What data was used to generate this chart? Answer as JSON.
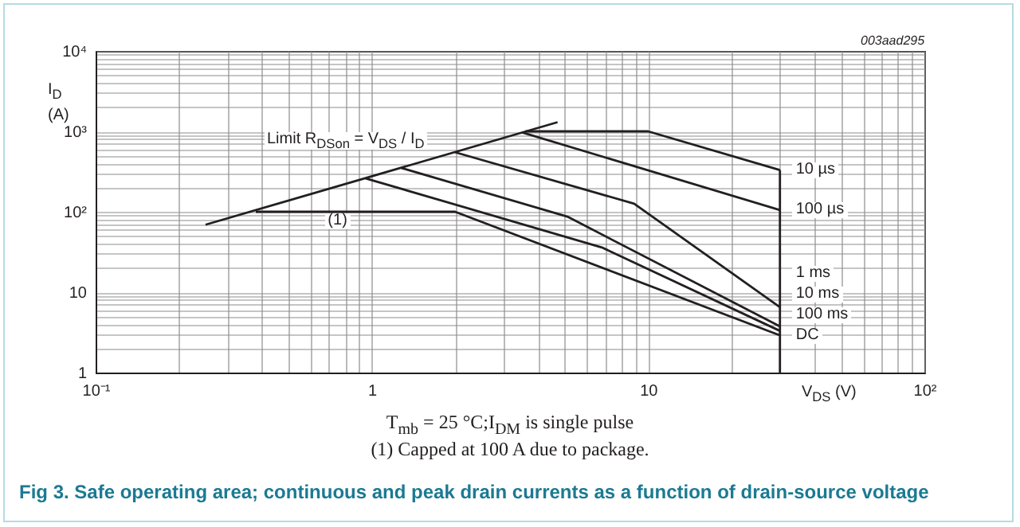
{
  "chart_data": {
    "type": "line",
    "title": "Fig 3. Safe operating area; continuous and peak drain currents as a function of drain-source voltage",
    "xlabel": "V$_{DS}$ (V)",
    "ylabel": "I$_{D}$ (A)",
    "log": "xy",
    "grid": true,
    "xlim": [
      0.1,
      100
    ],
    "ylim": [
      1,
      10000
    ],
    "xticks": [
      {
        "value": 0.1,
        "label": "10⁻¹"
      },
      {
        "value": 0.2,
        "label": null
      },
      {
        "value": 0.3,
        "label": null
      },
      {
        "value": 0.4,
        "label": null
      },
      {
        "value": 0.5,
        "label": null
      },
      {
        "value": 0.6,
        "label": null
      },
      {
        "value": 0.7,
        "label": null
      },
      {
        "value": 0.8,
        "label": null
      },
      {
        "value": 0.9,
        "label": null
      },
      1,
      {
        "value": 2,
        "label": null
      },
      {
        "value": 3,
        "label": null
      },
      {
        "value": 4,
        "label": null
      },
      {
        "value": 5,
        "label": null
      },
      {
        "value": 6,
        "label": null
      },
      {
        "value": 7,
        "label": null
      },
      {
        "value": 8,
        "label": null
      },
      {
        "value": 9,
        "label": null
      },
      10,
      {
        "value": 20,
        "label": null
      },
      {
        "value": 30,
        "label": null
      },
      {
        "value": 40,
        "label": null
      },
      {
        "value": 50,
        "label": null
      },
      {
        "value": 60,
        "label": null
      },
      {
        "value": 70,
        "label": null
      },
      {
        "value": 80,
        "label": null
      },
      {
        "value": 90,
        "label": null
      },
      {
        "value": 100,
        "label": "10²"
      }
    ],
    "yticks": [
      1,
      {
        "value": 2,
        "label": null
      },
      {
        "value": 3,
        "label": null
      },
      {
        "value": 4,
        "label": null
      },
      {
        "value": 5,
        "label": null
      },
      {
        "value": 6,
        "label": null
      },
      {
        "value": 7,
        "label": null
      },
      {
        "value": 8,
        "label": null
      },
      {
        "value": 9,
        "label": null
      },
      10,
      {
        "value": 20,
        "label": null
      },
      {
        "value": 30,
        "label": null
      },
      {
        "value": 40,
        "label": null
      },
      {
        "value": 50,
        "label": null
      },
      {
        "value": 60,
        "label": null
      },
      {
        "value": 70,
        "label": null
      },
      {
        "value": 80,
        "label": null
      },
      {
        "value": 90,
        "label": null
      },
      {
        "value": 100,
        "label": "10²"
      },
      {
        "value": 200,
        "label": null
      },
      {
        "value": 300,
        "label": null
      },
      {
        "value": 400,
        "label": null
      },
      {
        "value": 500,
        "label": null
      },
      {
        "value": 600,
        "label": null
      },
      {
        "value": 700,
        "label": null
      },
      {
        "value": 800,
        "label": null
      },
      {
        "value": 900,
        "label": null
      },
      {
        "value": 1000,
        "label": "10³"
      },
      {
        "value": 2000,
        "label": null
      },
      {
        "value": 3000,
        "label": null
      },
      {
        "value": 4000,
        "label": null
      },
      {
        "value": 5000,
        "label": null
      },
      {
        "value": 6000,
        "label": null
      },
      {
        "value": 7000,
        "label": null
      },
      {
        "value": 8000,
        "label": null
      },
      {
        "value": 9000,
        "label": null
      },
      {
        "value": 10000,
        "label": "10⁴"
      }
    ],
    "series": [
      {
        "color": "#231f20",
        "x": [
          0.25,
          4.7
        ],
        "values": [
          69,
          1300
        ]
      },
      {
        "name": "10 µs",
        "color": "#231f20",
        "x": [
          3.6,
          10,
          30
        ],
        "values": [
          1000,
          1000,
          330
        ]
      },
      {
        "name": "100 µs",
        "color": "#231f20",
        "x": [
          3.5,
          30
        ],
        "values": [
          970,
          105
        ]
      },
      {
        "name": "1 ms",
        "color": "#231f20",
        "x": [
          2,
          8.9,
          30
        ],
        "values": [
          550,
          126,
          6.5
        ]
      },
      {
        "name": "10 ms",
        "color": "#231f20",
        "x": [
          1.28,
          5.1,
          30
        ],
        "values": [
          350,
          87,
          3.75
        ]
      },
      {
        "name": "100 ms",
        "color": "#231f20",
        "x": [
          0.95,
          6.8,
          30
        ],
        "values": [
          260,
          36,
          3.3
        ]
      },
      {
        "name": "DC",
        "color": "#231f20",
        "x": [
          0.38,
          2,
          30
        ],
        "values": [
          100,
          100,
          2.9
        ]
      },
      {
        "color": "#231f20",
        "x": [
          30,
          30
        ],
        "values": [
          330,
          1
        ]
      }
    ],
    "annotations": [
      "003aad295",
      "Limit R$_{DSon}$ = V$_{DS}$ / I$_{D}$",
      {
        "text": "(1)",
        "x": 0.75,
        "y": 76
      },
      "T$_{mb}$ = 25 °C;I$_{DM}$ is single pulse",
      "(1) Capped at 100 A due to package."
    ]
  }
}
